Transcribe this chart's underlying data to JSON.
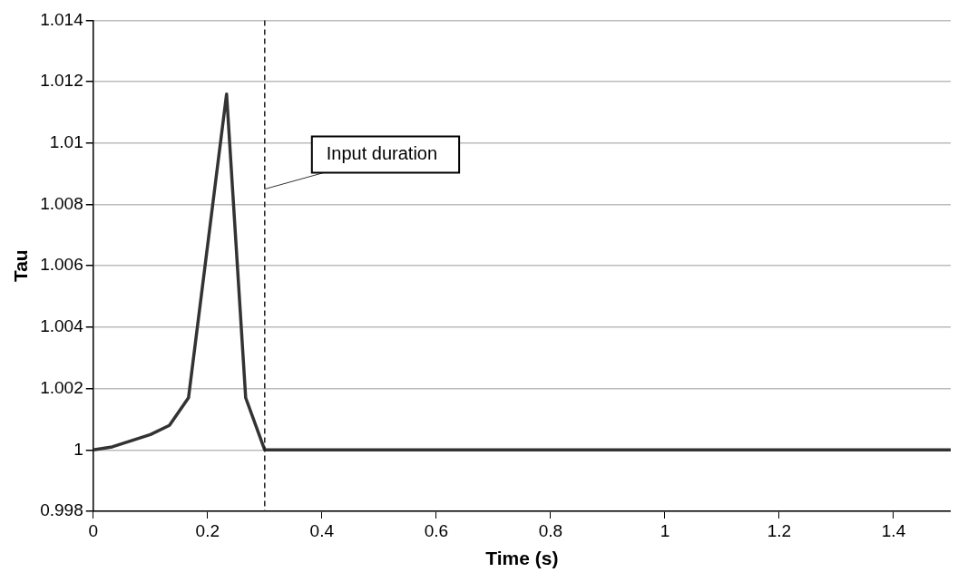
{
  "chart_data": {
    "type": "line",
    "xlabel": "Time (s)",
    "ylabel": "Tau",
    "x": [
      0,
      0.0333,
      0.0667,
      0.1,
      0.1333,
      0.1667,
      0.2333,
      0.2667,
      0.3,
      1.5
    ],
    "series": [
      {
        "color": "#333333",
        "values": [
          1.0,
          1.0001,
          1.0003,
          1.0005,
          1.0008,
          1.0017,
          1.0116,
          1.0017,
          1.0,
          1.0
        ]
      }
    ],
    "xlim": [
      0,
      1.5
    ],
    "xticks": [
      0,
      0.2,
      0.4,
      0.6,
      0.8,
      1,
      1.2,
      1.4
    ],
    "ylim": [
      0.998,
      1.014
    ],
    "yticks": [
      0.998,
      1,
      1.002,
      1.004,
      1.006,
      1.008,
      1.01,
      1.012,
      1.014
    ],
    "ref_lines": [
      {
        "axis": "x",
        "value": 0.3,
        "color": "#222222",
        "line_style": "dashed"
      }
    ],
    "annotations": [
      {
        "text": "Input duration",
        "x": 0.3,
        "y": 1.0085
      }
    ],
    "grid": "y",
    "legend": false,
    "marker": "none",
    "line_style": "solid"
  }
}
